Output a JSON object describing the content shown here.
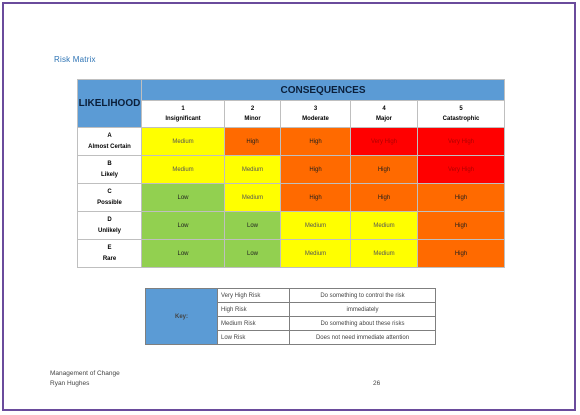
{
  "title": "Risk Matrix",
  "matrix": {
    "likelihood_header": "LIKELIHOOD",
    "consequences_header": "CONSEQUENCES",
    "columns": [
      {
        "num": "1",
        "label": "Insignificant"
      },
      {
        "num": "2",
        "label": "Minor"
      },
      {
        "num": "3",
        "label": "Moderate"
      },
      {
        "num": "4",
        "label": "Major"
      },
      {
        "num": "5",
        "label": "Catastrophic"
      }
    ],
    "rows": [
      {
        "letter": "A",
        "label": "Almost Certain",
        "cells": [
          {
            "text": "Medium",
            "level": "medium"
          },
          {
            "text": "High",
            "level": "high"
          },
          {
            "text": "High",
            "level": "high"
          },
          {
            "text": "Very High",
            "level": "veryhigh"
          },
          {
            "text": "Very High",
            "level": "veryhigh"
          }
        ]
      },
      {
        "letter": "B",
        "label": "Likely",
        "cells": [
          {
            "text": "Medium",
            "level": "medium"
          },
          {
            "text": "Medium",
            "level": "medium"
          },
          {
            "text": "High",
            "level": "high"
          },
          {
            "text": "High",
            "level": "high"
          },
          {
            "text": "Very High",
            "level": "veryhigh"
          }
        ]
      },
      {
        "letter": "C",
        "label": "Possible",
        "cells": [
          {
            "text": "Low",
            "level": "low"
          },
          {
            "text": "Medium",
            "level": "medium"
          },
          {
            "text": "High",
            "level": "high"
          },
          {
            "text": "High",
            "level": "high"
          },
          {
            "text": "High",
            "level": "high"
          }
        ]
      },
      {
        "letter": "D",
        "label": "Unlikely",
        "cells": [
          {
            "text": "Low",
            "level": "low"
          },
          {
            "text": "Low",
            "level": "low"
          },
          {
            "text": "Medium",
            "level": "medium"
          },
          {
            "text": "Medium",
            "level": "medium"
          },
          {
            "text": "High",
            "level": "high"
          }
        ]
      },
      {
        "letter": "E",
        "label": "Rare",
        "cells": [
          {
            "text": "Low",
            "level": "low"
          },
          {
            "text": "Low",
            "level": "low"
          },
          {
            "text": "Medium",
            "level": "medium"
          },
          {
            "text": "Medium",
            "level": "medium"
          },
          {
            "text": "High",
            "level": "high"
          }
        ]
      }
    ]
  },
  "key": {
    "label": "Key:",
    "entries": [
      {
        "level": "Very High Risk",
        "action": "Do something to control the risk"
      },
      {
        "level": "High Risk",
        "action": "immediately"
      },
      {
        "level": "Medium Risk",
        "action": "Do something about these risks"
      },
      {
        "level": "Low Risk",
        "action": "Does not need immediate attention"
      }
    ]
  },
  "footer": {
    "line1": "Management of Change",
    "line2": "Ryan Hughes",
    "page_number": "26"
  },
  "colors": {
    "header_blue": "#5b9bd5",
    "low": "#92d050",
    "medium": "#ffff00",
    "high": "#ff6a00",
    "very_high": "#ff0000",
    "border_purple": "#6a4b9c"
  }
}
